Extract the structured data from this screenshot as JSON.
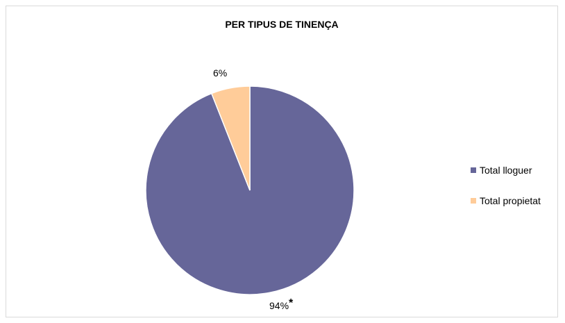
{
  "chart_data": {
    "type": "pie",
    "title": "PER TIPUS DE TINENÇA",
    "slices": [
      {
        "name": "Total lloguer",
        "value": 94,
        "label": "94%",
        "label_mark": "*",
        "color": "#666699"
      },
      {
        "name": "Total propietat",
        "value": 6,
        "label": "6%",
        "label_mark": "",
        "color": "#FFCC99"
      }
    ],
    "legend_position": "right"
  },
  "colors": {
    "slice_border": "#ffffff",
    "frame_border": "#d9d9d9"
  }
}
